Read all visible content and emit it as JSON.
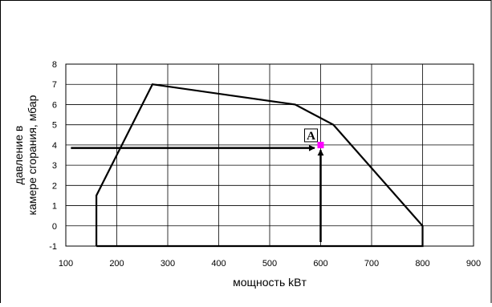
{
  "chart_data": {
    "type": "line",
    "title": "",
    "xlabel": "мощность kBт",
    "ylabel": [
      "давление в",
      "камере сгорания, мбар"
    ],
    "xlim": [
      100,
      900
    ],
    "ylim": [
      -1,
      8
    ],
    "xticks": [
      100,
      200,
      300,
      400,
      500,
      600,
      700,
      800,
      900
    ],
    "yticks": [
      -1,
      0,
      1,
      2,
      3,
      4,
      5,
      6,
      7,
      8
    ],
    "grid": true,
    "legend": "none",
    "series": [
      {
        "x": [
          160,
          160,
          270,
          550,
          625,
          800,
          800,
          160
        ],
        "y": [
          -1,
          1.5,
          7,
          6,
          5,
          0,
          -1,
          -1
        ]
      }
    ],
    "working_point": {
      "label": "A",
      "x": 600,
      "y": 4,
      "color": "#ff00ff"
    },
    "arrows": [
      {
        "from": [
          110,
          3.85
        ],
        "to": [
          588,
          3.85
        ]
      },
      {
        "from": [
          600,
          -0.8
        ],
        "to": [
          600,
          3.75
        ]
      }
    ]
  }
}
